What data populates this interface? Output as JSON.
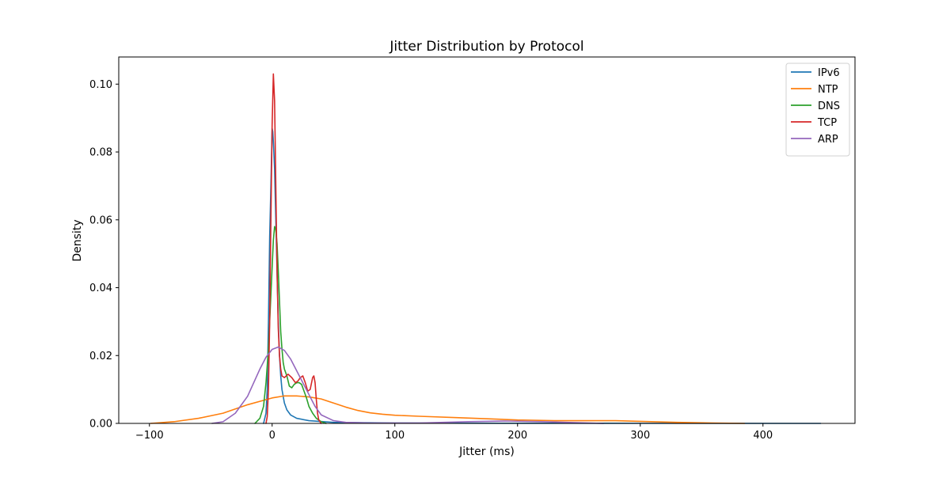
{
  "chart_data": {
    "type": "line",
    "title": "Jitter Distribution by Protocol",
    "xlabel": "Jitter (ms)",
    "ylabel": "Density",
    "xlim": [
      -125,
      475
    ],
    "ylim": [
      0,
      0.108
    ],
    "xticks": [
      -100,
      0,
      100,
      200,
      300,
      400
    ],
    "xtick_labels": [
      "−100",
      "0",
      "100",
      "200",
      "300",
      "400"
    ],
    "yticks": [
      0,
      0.02,
      0.04,
      0.06,
      0.08,
      0.1
    ],
    "ytick_labels": [
      "0.00",
      "0.02",
      "0.04",
      "0.06",
      "0.08",
      "0.10"
    ],
    "grid": false,
    "legend_position": "top-right",
    "series": [
      {
        "name": "IPv6",
        "color": "#1f77b4",
        "points": [
          [
            -7,
            0
          ],
          [
            -5,
            0.003
          ],
          [
            -4,
            0.01
          ],
          [
            -3,
            0.03
          ],
          [
            -2,
            0.055
          ],
          [
            -1,
            0.07
          ],
          [
            0,
            0.087
          ],
          [
            0.5,
            0.086
          ],
          [
            1,
            0.083
          ],
          [
            2,
            0.075
          ],
          [
            3,
            0.06
          ],
          [
            4,
            0.045
          ],
          [
            5,
            0.03
          ],
          [
            6,
            0.02
          ],
          [
            7,
            0.014
          ],
          [
            8,
            0.01
          ],
          [
            10,
            0.006
          ],
          [
            12,
            0.004
          ],
          [
            15,
            0.0025
          ],
          [
            20,
            0.0015
          ],
          [
            30,
            0.0008
          ],
          [
            50,
            0.0003
          ],
          [
            100,
            0.0001
          ],
          [
            200,
            5e-05
          ],
          [
            300,
            3e-05
          ],
          [
            447,
            0
          ]
        ]
      },
      {
        "name": "NTP",
        "color": "#ff7f0e",
        "points": [
          [
            -99,
            0
          ],
          [
            -80,
            0.0005
          ],
          [
            -60,
            0.0015
          ],
          [
            -40,
            0.003
          ],
          [
            -20,
            0.0055
          ],
          [
            0,
            0.0075
          ],
          [
            10,
            0.0081
          ],
          [
            20,
            0.0081
          ],
          [
            30,
            0.0078
          ],
          [
            40,
            0.0072
          ],
          [
            50,
            0.006
          ],
          [
            60,
            0.0048
          ],
          [
            70,
            0.0038
          ],
          [
            80,
            0.0031
          ],
          [
            90,
            0.0027
          ],
          [
            100,
            0.0024
          ],
          [
            120,
            0.0021
          ],
          [
            150,
            0.0017
          ],
          [
            180,
            0.0013
          ],
          [
            200,
            0.001
          ],
          [
            230,
            0.0008
          ],
          [
            260,
            0.0008
          ],
          [
            280,
            0.0008
          ],
          [
            300,
            0.0006
          ],
          [
            330,
            0.0003
          ],
          [
            360,
            0.0001
          ],
          [
            385,
            0
          ]
        ]
      },
      {
        "name": "DNS",
        "color": "#2ca02c",
        "points": [
          [
            -14,
            0
          ],
          [
            -10,
            0.0015
          ],
          [
            -7,
            0.005
          ],
          [
            -5,
            0.012
          ],
          [
            -3,
            0.022
          ],
          [
            -1,
            0.038
          ],
          [
            1,
            0.054
          ],
          [
            2,
            0.058
          ],
          [
            3,
            0.057
          ],
          [
            4,
            0.053
          ],
          [
            5,
            0.045
          ],
          [
            6,
            0.036
          ],
          [
            7,
            0.027
          ],
          [
            8,
            0.022
          ],
          [
            9,
            0.018
          ],
          [
            10,
            0.016
          ],
          [
            12,
            0.014
          ],
          [
            14,
            0.011
          ],
          [
            16,
            0.0105
          ],
          [
            18,
            0.0115
          ],
          [
            20,
            0.012
          ],
          [
            22,
            0.012
          ],
          [
            24,
            0.0115
          ],
          [
            26,
            0.0095
          ],
          [
            28,
            0.0075
          ],
          [
            30,
            0.005
          ],
          [
            33,
            0.003
          ],
          [
            36,
            0.0015
          ],
          [
            40,
            0.0005
          ],
          [
            44,
            0
          ]
        ]
      },
      {
        "name": "TCP",
        "color": "#d62728",
        "points": [
          [
            -5,
            0
          ],
          [
            -4,
            0.002
          ],
          [
            -3,
            0.01
          ],
          [
            -2,
            0.03
          ],
          [
            -1,
            0.06
          ],
          [
            0,
            0.088
          ],
          [
            1,
            0.103
          ],
          [
            2,
            0.095
          ],
          [
            3,
            0.07
          ],
          [
            4,
            0.045
          ],
          [
            5,
            0.028
          ],
          [
            6,
            0.02
          ],
          [
            7,
            0.016
          ],
          [
            8,
            0.014
          ],
          [
            10,
            0.0135
          ],
          [
            13,
            0.0145
          ],
          [
            16,
            0.0135
          ],
          [
            19,
            0.012
          ],
          [
            21,
            0.0125
          ],
          [
            23,
            0.0135
          ],
          [
            25,
            0.014
          ],
          [
            27,
            0.012
          ],
          [
            29,
            0.0095
          ],
          [
            31,
            0.01
          ],
          [
            33,
            0.0135
          ],
          [
            34,
            0.014
          ],
          [
            35,
            0.012
          ],
          [
            36,
            0.007
          ],
          [
            37,
            0.003
          ],
          [
            38,
            0.001
          ],
          [
            40,
            0
          ]
        ]
      },
      {
        "name": "ARP",
        "color": "#9467bd",
        "points": [
          [
            -49,
            0
          ],
          [
            -40,
            0.0005
          ],
          [
            -30,
            0.003
          ],
          [
            -20,
            0.008
          ],
          [
            -15,
            0.012
          ],
          [
            -10,
            0.016
          ],
          [
            -5,
            0.0195
          ],
          [
            0,
            0.0218
          ],
          [
            5,
            0.0225
          ],
          [
            10,
            0.0215
          ],
          [
            15,
            0.019
          ],
          [
            20,
            0.0155
          ],
          [
            25,
            0.012
          ],
          [
            30,
            0.0085
          ],
          [
            35,
            0.005
          ],
          [
            40,
            0.0025
          ],
          [
            50,
            0.0008
          ],
          [
            60,
            0.0003
          ],
          [
            80,
            0.0001
          ],
          [
            120,
            0.0001
          ],
          [
            160,
            0.0005
          ],
          [
            190,
            0.0007
          ],
          [
            220,
            0.0005
          ],
          [
            250,
            0.0002
          ],
          [
            270,
            0
          ]
        ]
      }
    ]
  }
}
